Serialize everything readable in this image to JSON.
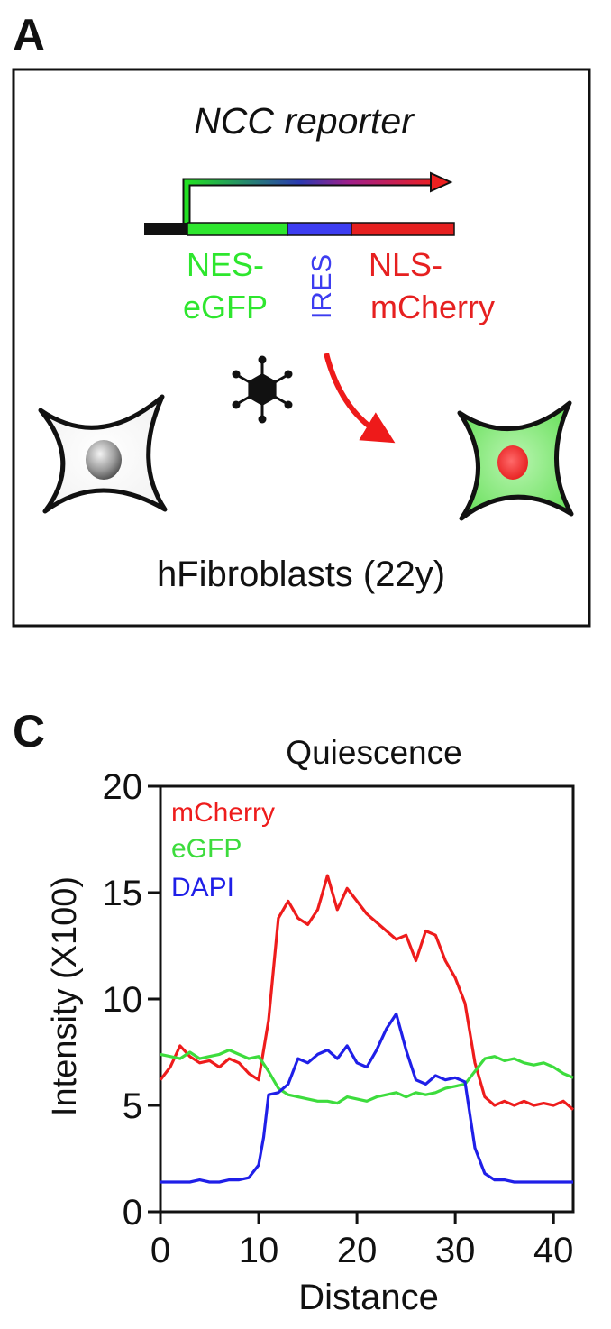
{
  "panelA": {
    "letter": "A",
    "title": "NCC reporter",
    "label_nes_1": "NES-",
    "label_nes_2": "eGFP",
    "label_ires": "IRES",
    "label_nls_1": "NLS-",
    "label_nls_2": "mCherry",
    "cells_caption": "hFibroblasts (22y)",
    "colors": {
      "green": "#2ee62e",
      "blue": "#3d3df0",
      "red": "#e62020"
    }
  },
  "panelC": {
    "letter": "C"
  },
  "chart_data": {
    "type": "line",
    "title": "Quiescence",
    "xlabel": "Distance",
    "ylabel": "Intensity (X100)",
    "xlim": [
      0,
      42
    ],
    "ylim": [
      0,
      20
    ],
    "xticks": [
      "0",
      "10",
      "20",
      "30",
      "40"
    ],
    "yticks": [
      "0",
      "5",
      "10",
      "15",
      "20"
    ],
    "legend_position": "top-left",
    "series": [
      {
        "name": "mCherry",
        "color": "#ee1c1c",
        "x": [
          0,
          1,
          2,
          3,
          4,
          5,
          6,
          7,
          8,
          9,
          10,
          11,
          12,
          13,
          14,
          15,
          16,
          17,
          18,
          19,
          20,
          21,
          22,
          23,
          24,
          25,
          26,
          27,
          28,
          29,
          30,
          31,
          32,
          33,
          34,
          35,
          36,
          37,
          38,
          39,
          40,
          41,
          42
        ],
        "y": [
          6.2,
          6.8,
          7.8,
          7.3,
          7.0,
          7.1,
          6.8,
          7.2,
          7.0,
          6.5,
          6.2,
          9.0,
          13.8,
          14.6,
          13.8,
          13.5,
          14.2,
          15.8,
          14.2,
          15.2,
          14.6,
          14.0,
          13.6,
          13.2,
          12.8,
          13.0,
          11.8,
          13.2,
          13.0,
          11.8,
          11.0,
          9.8,
          7.0,
          5.4,
          5.0,
          5.2,
          5.0,
          5.2,
          5.0,
          5.1,
          5.0,
          5.2,
          4.8
        ]
      },
      {
        "name": "eGFP",
        "color": "#3ddc3d",
        "x": [
          0,
          1,
          2,
          3,
          4,
          5,
          6,
          7,
          8,
          9,
          10,
          11,
          12,
          13,
          14,
          15,
          16,
          17,
          18,
          19,
          20,
          21,
          22,
          23,
          24,
          25,
          26,
          27,
          28,
          29,
          30,
          31,
          32,
          33,
          34,
          35,
          36,
          37,
          38,
          39,
          40,
          41,
          42
        ],
        "y": [
          7.4,
          7.3,
          7.2,
          7.5,
          7.2,
          7.3,
          7.4,
          7.6,
          7.4,
          7.2,
          7.3,
          6.6,
          5.8,
          5.5,
          5.4,
          5.3,
          5.2,
          5.2,
          5.1,
          5.4,
          5.3,
          5.2,
          5.4,
          5.5,
          5.6,
          5.4,
          5.6,
          5.5,
          5.6,
          5.8,
          5.9,
          6.0,
          6.6,
          7.2,
          7.3,
          7.1,
          7.2,
          7.0,
          6.9,
          7.0,
          6.8,
          6.5,
          6.3
        ]
      },
      {
        "name": "DAPI",
        "color": "#1f1fe8",
        "x": [
          0,
          1,
          2,
          3,
          4,
          5,
          6,
          7,
          8,
          9,
          10,
          10.5,
          11,
          12,
          13,
          14,
          15,
          16,
          17,
          18,
          19,
          20,
          21,
          22,
          23,
          24,
          25,
          26,
          27,
          28,
          29,
          30,
          31,
          32,
          33,
          34,
          35,
          36,
          37,
          38,
          39,
          40,
          41,
          42
        ],
        "y": [
          1.4,
          1.4,
          1.4,
          1.4,
          1.5,
          1.4,
          1.4,
          1.5,
          1.5,
          1.6,
          2.2,
          3.5,
          5.5,
          5.6,
          6.0,
          7.2,
          7.0,
          7.4,
          7.6,
          7.2,
          7.8,
          7.0,
          6.8,
          7.6,
          8.6,
          9.3,
          7.6,
          6.2,
          6.0,
          6.4,
          6.2,
          6.3,
          6.1,
          3.0,
          1.8,
          1.5,
          1.5,
          1.4,
          1.4,
          1.4,
          1.4,
          1.4,
          1.4,
          1.4
        ]
      }
    ]
  }
}
